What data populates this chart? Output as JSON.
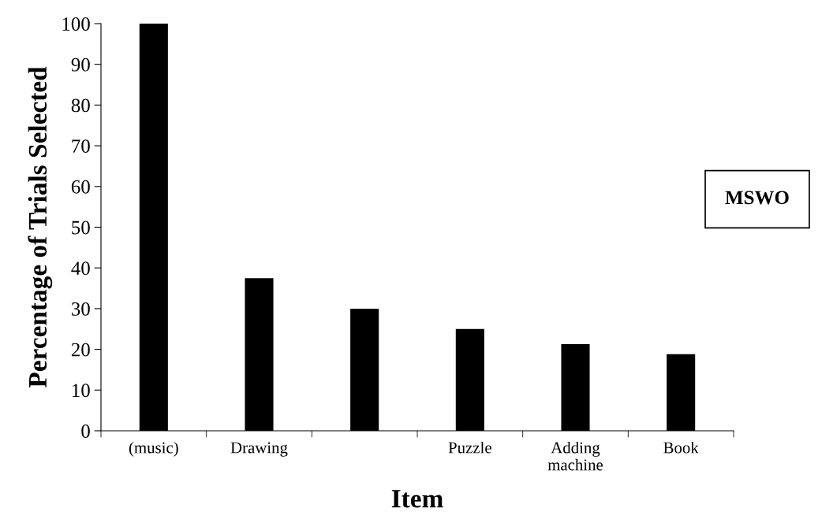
{
  "chart_data": {
    "type": "bar",
    "xlabel": "Item",
    "ylabel": "Percentage of Trials Selected",
    "categories": [
      "(music)",
      "Drawing",
      null,
      "Puzzle",
      "Adding\nmachine",
      "Book"
    ],
    "values": [
      100,
      37.5,
      30,
      25,
      21.3,
      18.8
    ],
    "color": "#000000",
    "ylim": [
      0,
      100
    ],
    "yticks": [
      0,
      10,
      20,
      30,
      40,
      50,
      60,
      70,
      80,
      90,
      100
    ],
    "grid": false,
    "legend": false,
    "annotations": [
      "MSWO"
    ]
  }
}
